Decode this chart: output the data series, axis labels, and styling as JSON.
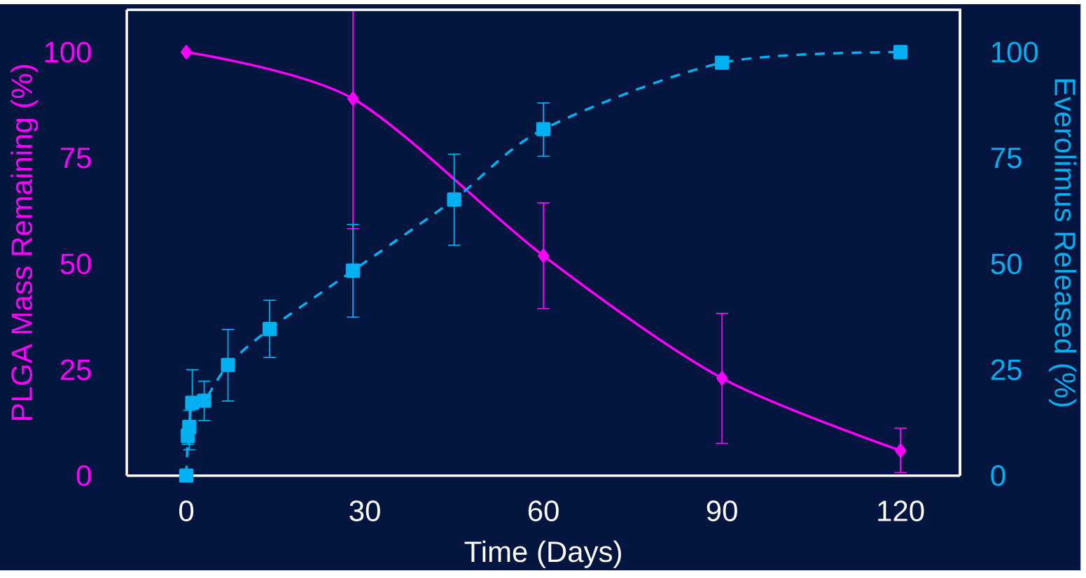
{
  "chart_data": {
    "type": "line",
    "xlabel": "Time (Days)",
    "ylabel": "PLGA Mass Remaining (%)",
    "y2label": "Everolimus Released (%)",
    "x": [
      0,
      0.25,
      0.5,
      1,
      3,
      7,
      14,
      28,
      45,
      60,
      90,
      120
    ],
    "series": [
      {
        "name": null,
        "color": "#ff00ff",
        "marker": "diamond",
        "line_style": "solid",
        "x": [
          0,
          28,
          60,
          90,
          120
        ],
        "values": [
          100,
          89,
          51.9,
          23,
          5.9
        ],
        "errors": [
          null,
          [
            58.3,
            110
          ],
          [
            39.4,
            64.4
          ],
          [
            7.6,
            38.3
          ],
          [
            0.7,
            11.2
          ]
        ]
      },
      {
        "name": null,
        "color": "#00b0f0",
        "marker": "square",
        "line_style": "dashed",
        "axis": "y2",
        "values": [
          0,
          9.4,
          11.5,
          17.2,
          17.7,
          26.1,
          34.6,
          48.4,
          65.2,
          81.8,
          97.5,
          100
        ],
        "errors": [
          null,
          [
            7.4,
            9.4
          ],
          [
            6.1,
            15.4
          ],
          [
            17.2,
            25
          ],
          [
            13,
            22.3
          ],
          [
            17.6,
            34.5
          ],
          [
            27.9,
            41.4
          ],
          [
            37.4,
            59.3
          ],
          [
            54.4,
            75.9
          ],
          [
            75.4,
            88
          ],
          null,
          null
        ]
      }
    ],
    "xlim": [
      -10,
      130
    ],
    "xticks": [
      0,
      30,
      60,
      90,
      120
    ],
    "ylim": [
      0,
      110
    ],
    "yticks": [
      0,
      25,
      50,
      75,
      100
    ],
    "y2lim": [
      0,
      110
    ],
    "y2ticks": [
      0,
      25,
      50,
      75,
      100
    ],
    "grid": false,
    "legend": false
  }
}
